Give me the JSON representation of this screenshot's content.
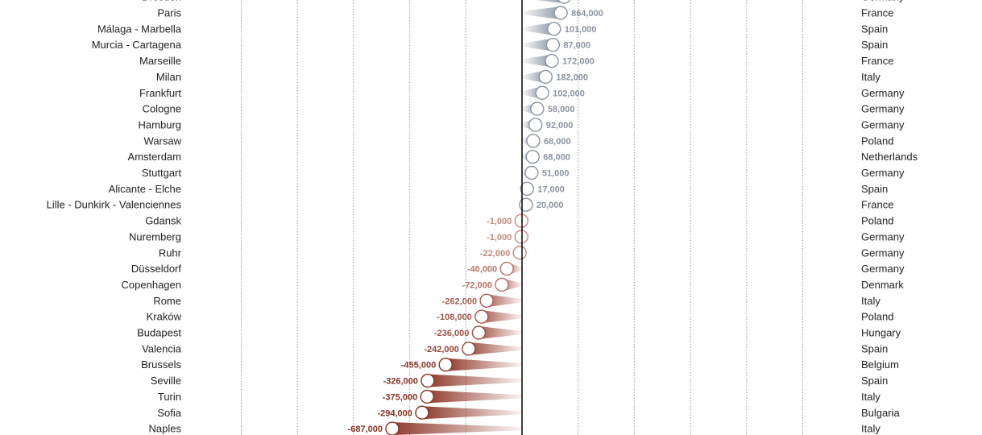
{
  "chart_data": {
    "type": "lollipop",
    "title": "",
    "xlabel": "",
    "ylabel": "",
    "grid": true,
    "colors": {
      "positive": "#8a93a3",
      "negative": "#8b3222",
      "near_zero": "#c48a7e",
      "zero_line": "#000000",
      "grid": "#999999"
    },
    "rows": [
      {
        "city": "Dresden",
        "country": "Germany",
        "label": "",
        "x": 0.75
      },
      {
        "city": "Paris",
        "country": "France",
        "label": "864,000",
        "x": 0.69
      },
      {
        "city": "Málaga - Marbella",
        "country": "Spain",
        "label": "101,000",
        "x": 0.57
      },
      {
        "city": "Murcia - Cartagena",
        "country": "Spain",
        "label": "87,000",
        "x": 0.55
      },
      {
        "city": "Marseille",
        "country": "France",
        "label": "172,000",
        "x": 0.53
      },
      {
        "city": "Milan",
        "country": "Italy",
        "label": "182,000",
        "x": 0.42
      },
      {
        "city": "Frankfurt",
        "country": "Germany",
        "label": "102,000",
        "x": 0.36
      },
      {
        "city": "Cologne",
        "country": "Germany",
        "label": "58,000",
        "x": 0.27
      },
      {
        "city": "Hamburg",
        "country": "Germany",
        "label": "92,000",
        "x": 0.24
      },
      {
        "city": "Warsaw",
        "country": "Poland",
        "label": "68,000",
        "x": 0.2
      },
      {
        "city": "Amsterdam",
        "country": "Netherlands",
        "label": "68,000",
        "x": 0.19
      },
      {
        "city": "Stuttgart",
        "country": "Germany",
        "label": "51,000",
        "x": 0.17
      },
      {
        "city": "Alicante - Elche",
        "country": "Spain",
        "label": "17,000",
        "x": 0.09
      },
      {
        "city": "Lille - Dunkirk - Valenciennes",
        "country": "France",
        "label": "20,000",
        "x": 0.07
      },
      {
        "city": "Gdansk",
        "country": "Poland",
        "label": "-1,000",
        "x": -0.01
      },
      {
        "city": "Nuremberg",
        "country": "Germany",
        "label": "-1,000",
        "x": -0.01
      },
      {
        "city": "Ruhr",
        "country": "Germany",
        "label": "-22,000",
        "x": -0.04
      },
      {
        "city": "Düsseldorf",
        "country": "Germany",
        "label": "-40,000",
        "x": -0.27
      },
      {
        "city": "Copenhagen",
        "country": "Denmark",
        "label": "-72,000",
        "x": -0.36
      },
      {
        "city": "Rome",
        "country": "Italy",
        "label": "-262,000",
        "x": -0.63
      },
      {
        "city": "Kraków",
        "country": "Poland",
        "label": "-108,000",
        "x": -0.72
      },
      {
        "city": "Budapest",
        "country": "Hungary",
        "label": "-236,000",
        "x": -0.77
      },
      {
        "city": "Valencia",
        "country": "Spain",
        "label": "-242,000",
        "x": -0.95
      },
      {
        "city": "Brussels",
        "country": "Belgium",
        "label": "-455,000",
        "x": -1.36
      },
      {
        "city": "Seville",
        "country": "Spain",
        "label": "-326,000",
        "x": -1.68
      },
      {
        "city": "Turin",
        "country": "Italy",
        "label": "-375,000",
        "x": -1.69
      },
      {
        "city": "Sofia",
        "country": "Bulgaria",
        "label": "-294,000",
        "x": -1.78
      },
      {
        "city": "Naples",
        "country": "Italy",
        "label": "-687,000",
        "x": -2.31
      }
    ],
    "xlim": [
      -5,
      5
    ]
  }
}
